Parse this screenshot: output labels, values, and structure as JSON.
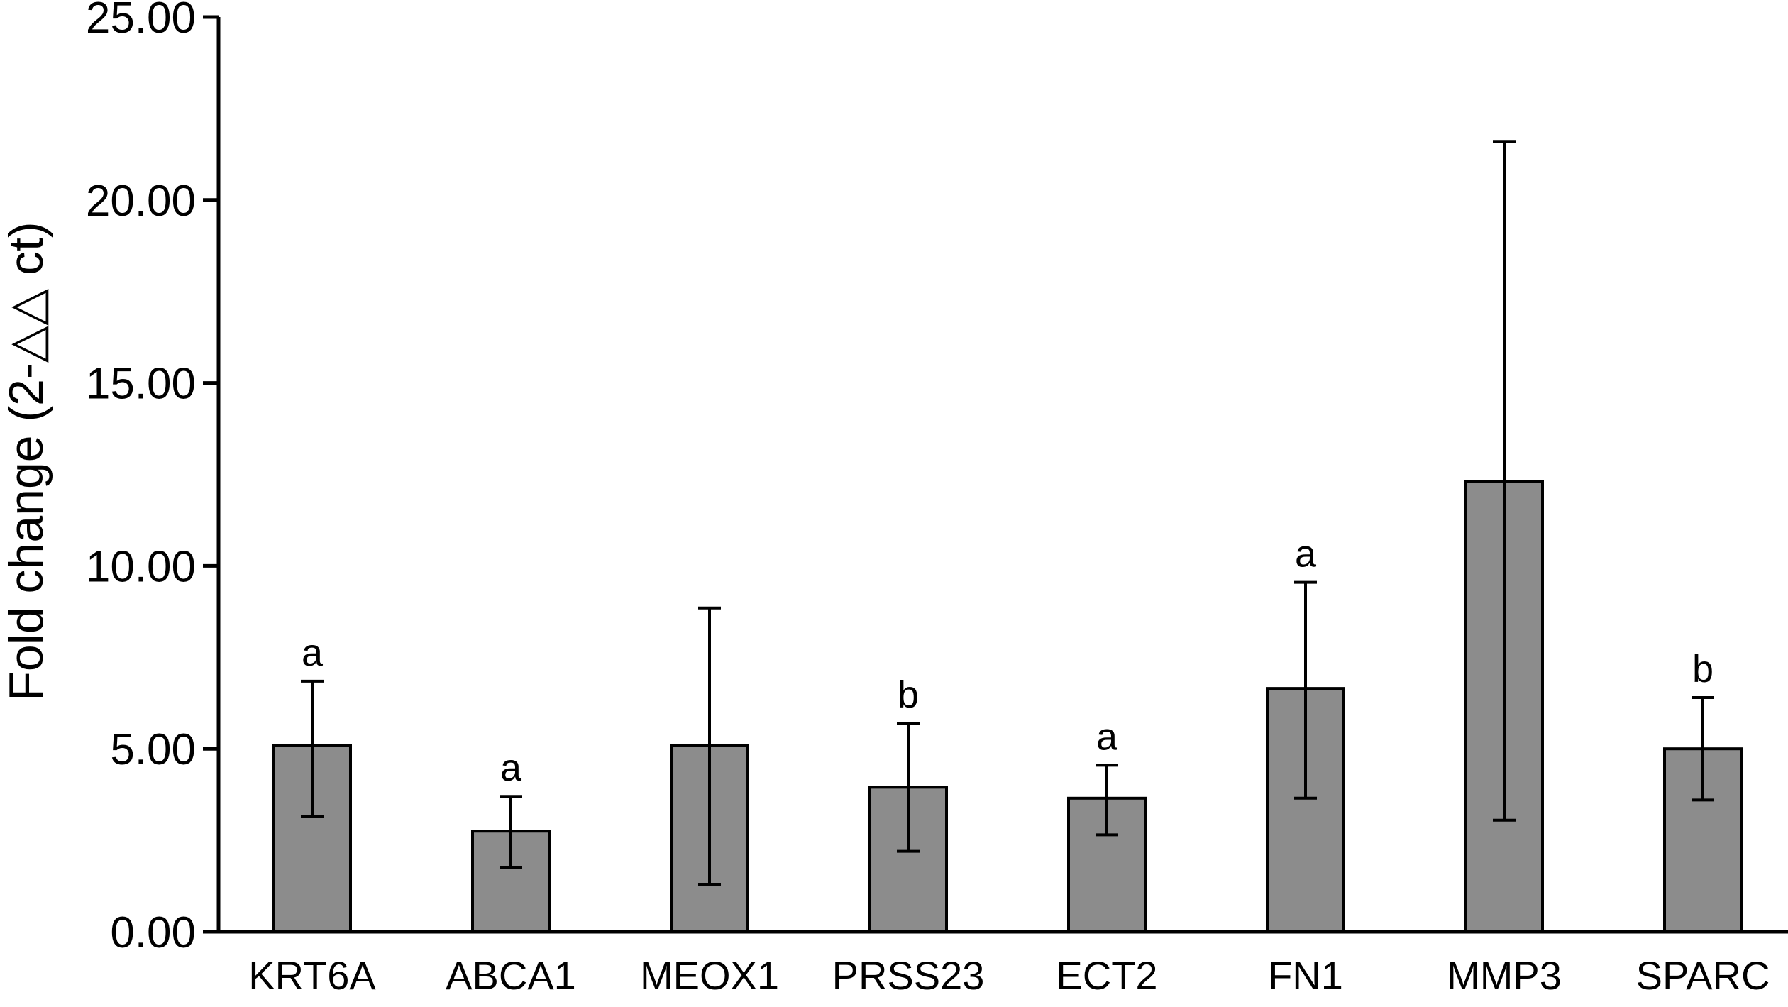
{
  "chart_data": {
    "type": "bar",
    "title": "",
    "xlabel": "",
    "ylabel": "Fold change (2-△△ ct)",
    "ylim": [
      0,
      25
    ],
    "yticks": [
      "0.00",
      "5.00",
      "10.00",
      "15.00",
      "20.00",
      "25.00"
    ],
    "categories": [
      "KRT6A",
      "ABCA1",
      "MEOX1",
      "PRSS23",
      "ECT2",
      "FN1",
      "MMP3",
      "SPARC"
    ],
    "values": [
      5.1,
      2.75,
      5.1,
      3.95,
      3.65,
      6.65,
      12.3,
      5.0
    ],
    "error_low": [
      3.15,
      1.75,
      1.3,
      2.2,
      2.65,
      3.65,
      3.05,
      3.6
    ],
    "error_high": [
      6.85,
      3.7,
      8.85,
      5.7,
      4.55,
      9.55,
      21.6,
      6.4
    ],
    "significance": [
      "a",
      "a",
      "",
      "b",
      "a",
      "a",
      "",
      "b"
    ],
    "bar_color": "#8c8c8c",
    "grid": false,
    "legend": "none"
  }
}
